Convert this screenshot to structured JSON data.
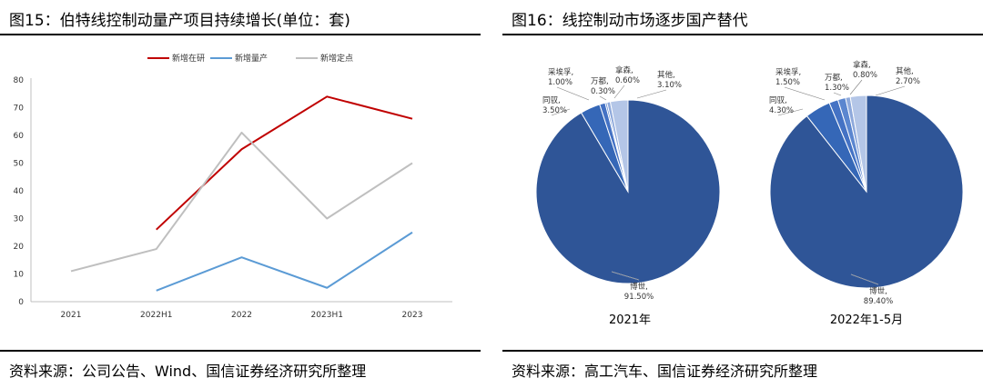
{
  "left": {
    "title": "图15：伯特线控制动量产项目持续增长(单位：套)",
    "source": "资料来源：公司公告、Wind、国信证券经济研究所整理"
  },
  "right": {
    "title": "图16：线控制动市场逐步国产替代",
    "source": "资料来源：高工汽车、国信证券经济研究所整理"
  },
  "chart_data": [
    {
      "type": "line",
      "categories": [
        "2021",
        "2022H1",
        "2022",
        "2023H1",
        "2023"
      ],
      "ylim": [
        0,
        80
      ],
      "yticks": [
        0,
        10,
        20,
        30,
        40,
        50,
        60,
        70,
        80
      ],
      "grid": false,
      "legend": "top",
      "series": [
        {
          "name": "新增在研",
          "color": "#c00000",
          "values": [
            null,
            26,
            55,
            74,
            66
          ]
        },
        {
          "name": "新增量产",
          "color": "#5b9bd5",
          "values": [
            null,
            4,
            16,
            5,
            25
          ]
        },
        {
          "name": "新增定点",
          "color": "#bfbfbf",
          "values": [
            11,
            19,
            61,
            30,
            50
          ]
        }
      ]
    },
    {
      "type": "pie",
      "caption": "2021年",
      "slices": [
        {
          "label": "博世",
          "value": "91.50%",
          "pct": 91.5,
          "color": "#2f5597"
        },
        {
          "label": "同驭",
          "value": "3.50%",
          "pct": 3.5,
          "color": "#3567b7"
        },
        {
          "label": "采埃孚",
          "value": "1.00%",
          "pct": 1.0,
          "color": "#4472c4"
        },
        {
          "label": "万都",
          "value": "0.30%",
          "pct": 0.3,
          "color": "#5b86cf"
        },
        {
          "label": "拿森",
          "value": "0.60%",
          "pct": 0.6,
          "color": "#8ea9db"
        },
        {
          "label": "其他",
          "value": "3.10%",
          "pct": 3.1,
          "color": "#b4c6e7"
        }
      ]
    },
    {
      "type": "pie",
      "caption": "2022年1-5月",
      "slices": [
        {
          "label": "博世",
          "value": "89.40%",
          "pct": 89.4,
          "color": "#2f5597"
        },
        {
          "label": "同驭",
          "value": "4.30%",
          "pct": 4.3,
          "color": "#3567b7"
        },
        {
          "label": "采埃孚",
          "value": "1.50%",
          "pct": 1.5,
          "color": "#4472c4"
        },
        {
          "label": "万都",
          "value": "1.30%",
          "pct": 1.3,
          "color": "#5b86cf"
        },
        {
          "label": "拿森",
          "value": "0.80%",
          "pct": 0.8,
          "color": "#8ea9db"
        },
        {
          "label": "其他",
          "value": "2.70%",
          "pct": 2.7,
          "color": "#b4c6e7"
        }
      ]
    }
  ]
}
